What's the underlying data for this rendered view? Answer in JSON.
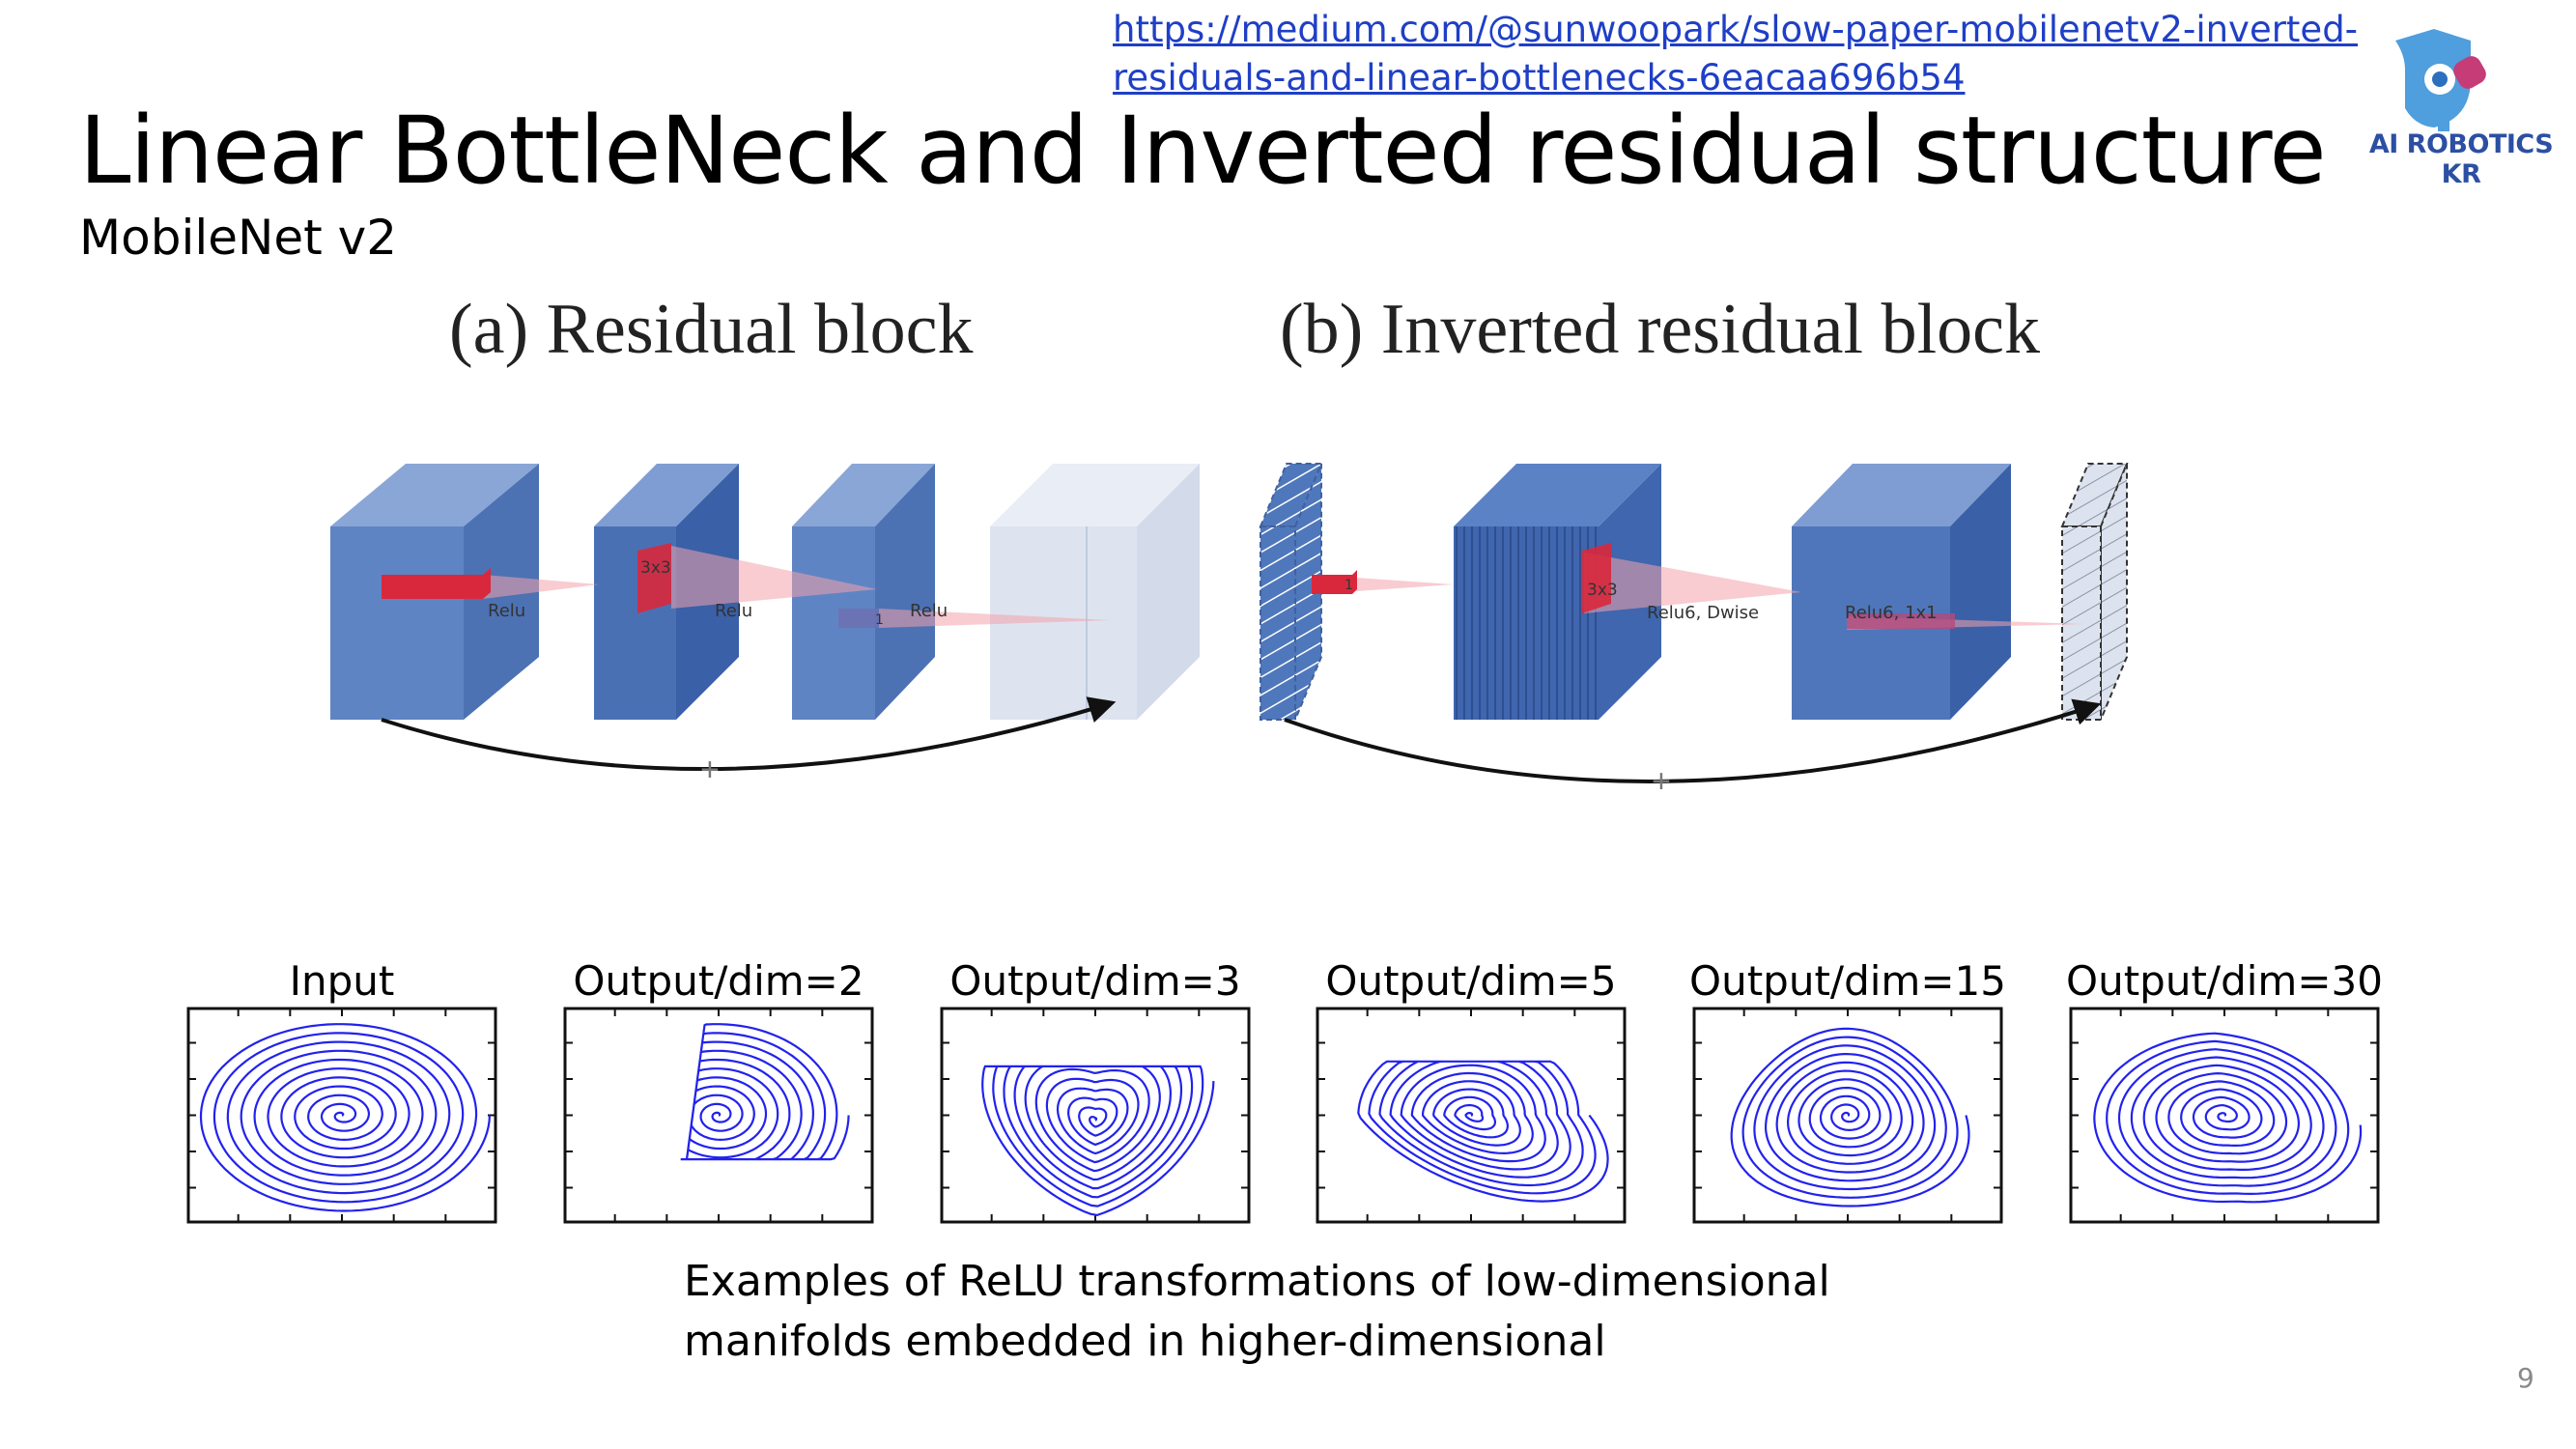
{
  "header": {
    "link": "https://medium.com/@sunwoopark/slow-paper-mobilenetv2-inverted-residuals-and-linear-bottlenecks-6eacaa696b54",
    "title": "Linear BottleNeck and Inverted residual structure",
    "subtitle": "MobileNet v2",
    "logo_text": "AI ROBOTICS KR"
  },
  "figure_a": {
    "title": "(a) Residual block",
    "labels": [
      "Relu",
      "3x3",
      "Relu",
      "1",
      "Relu"
    ],
    "plus": "+"
  },
  "figure_b": {
    "title": "(b) Inverted residual block",
    "labels": [
      "1",
      "3x3",
      "Relu6, Dwise",
      "Relu6, 1x1"
    ],
    "plus": "+"
  },
  "plots": [
    "Input",
    "Output/dim=2",
    "Output/dim=3",
    "Output/dim=5",
    "Output/dim=15",
    "Output/dim=30"
  ],
  "caption": "Examples of ReLU transformations of low-dimensional manifolds embedded in higher-dimensional",
  "page_number": "9",
  "colors": {
    "block_blue": "#5a80c0",
    "block_blue_dark": "#3f66ae",
    "light_block": "#dfe5f0",
    "red_kernel": "#d9283c",
    "spiral_blue": "#2222ee",
    "link_blue": "#1f3fc6"
  }
}
